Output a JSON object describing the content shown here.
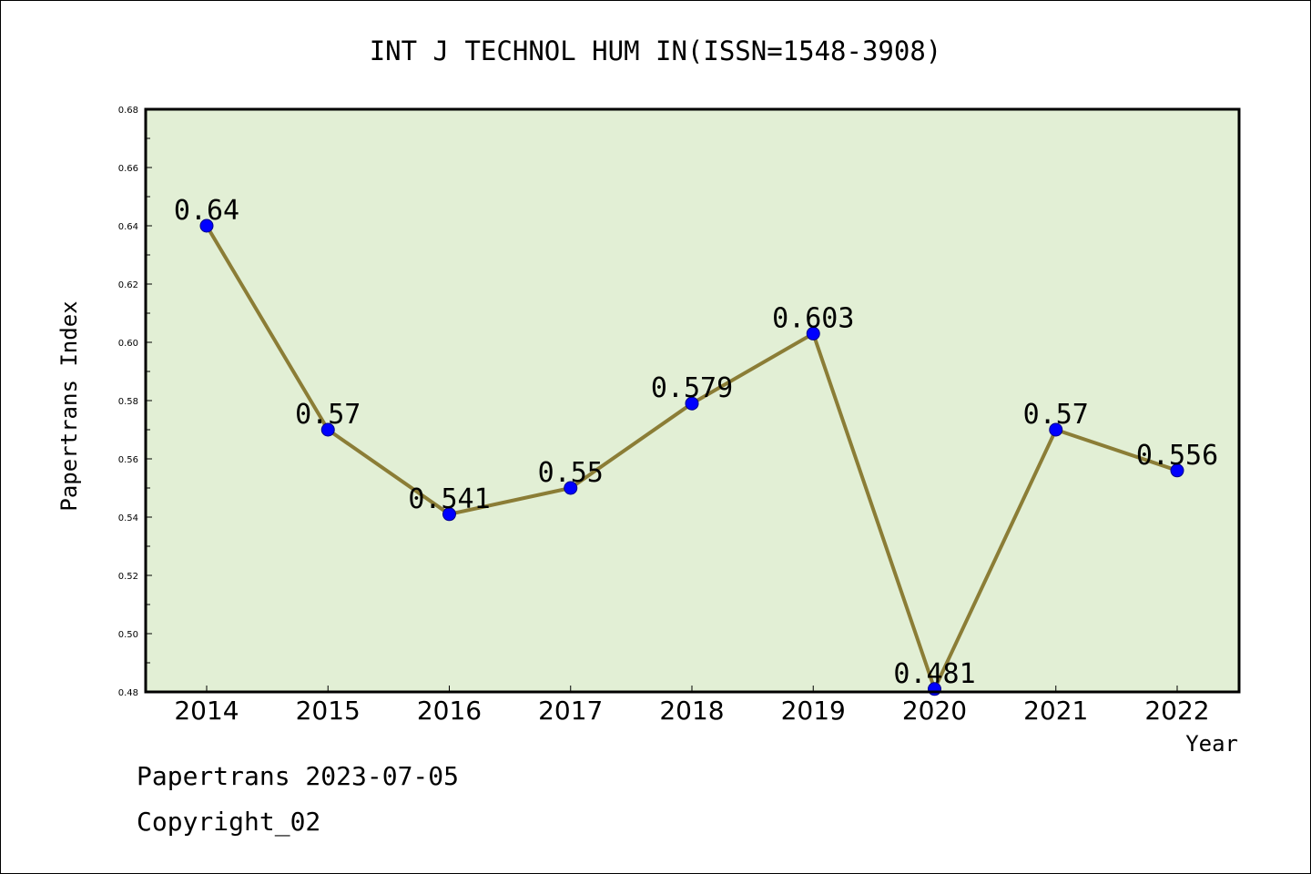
{
  "chart_data": {
    "type": "line",
    "title": "INT J TECHNOL HUM IN(ISSN=1548-3908)",
    "xlabel": "Year",
    "ylabel": "Papertrans Index",
    "categories": [
      "2014",
      "2015",
      "2016",
      "2017",
      "2018",
      "2019",
      "2020",
      "2021",
      "2022"
    ],
    "series": [
      {
        "values": [
          0.64,
          0.57,
          0.541,
          0.55,
          0.579,
          0.603,
          0.481,
          0.57,
          0.556
        ]
      }
    ],
    "data_labels": [
      "0.64",
      "0.57",
      "0.541",
      "0.55",
      "0.579",
      "0.603",
      "0.481",
      "0.57",
      "0.556"
    ],
    "ylim": [
      0.48,
      0.68
    ],
    "yticks": [
      "0.48",
      "0.50",
      "0.52",
      "0.54",
      "0.56",
      "0.58",
      "0.60",
      "0.62",
      "0.64",
      "0.66",
      "0.68"
    ],
    "colors": {
      "plot_bg": "#e2efd5",
      "line": "#8b7d36",
      "marker": "#0000ff"
    }
  },
  "footer": {
    "line1": "Papertrans 2023-07-05",
    "line2": "Copyright_02"
  }
}
